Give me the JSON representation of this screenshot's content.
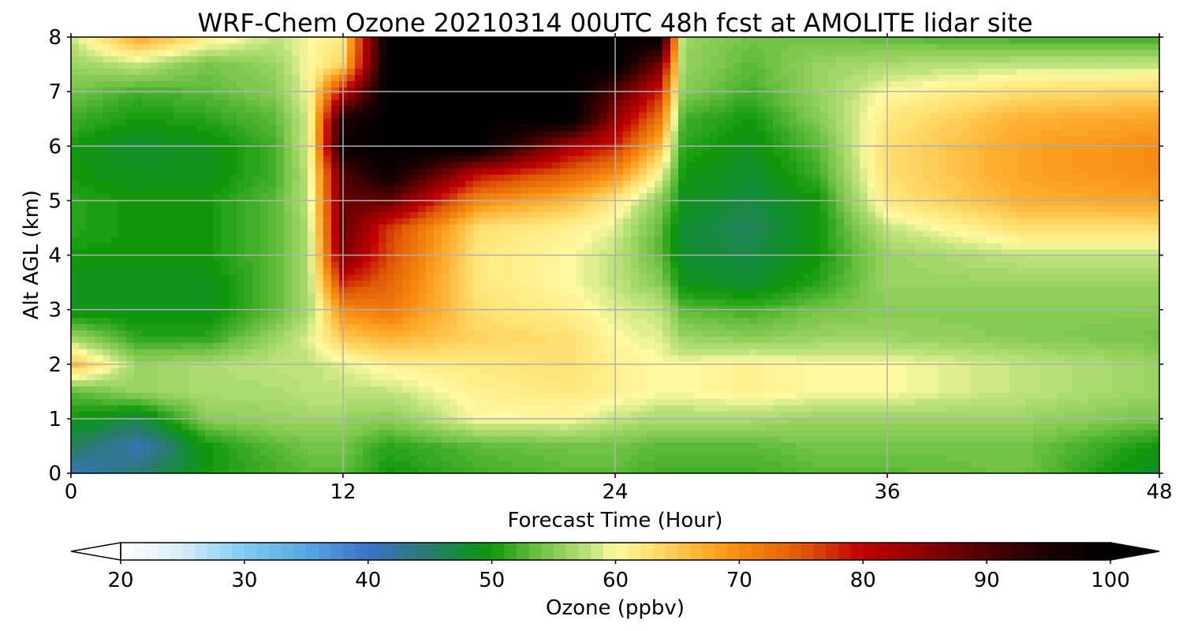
{
  "chart_data": {
    "type": "heatmap",
    "title": "WRF-Chem Ozone  20210314 00UTC 48h fcst at AMOLITE lidar site",
    "xlabel": "Forecast Time (Hour)",
    "ylabel": "Alt AGL (km)",
    "xlim": [
      0,
      48
    ],
    "ylim": [
      0,
      8
    ],
    "x_ticks": [
      "0",
      "12",
      "24",
      "36",
      "48"
    ],
    "y_ticks": [
      "0",
      "1",
      "2",
      "3",
      "4",
      "5",
      "6",
      "7",
      "8"
    ],
    "grid": true,
    "colorbar": {
      "label": "Ozone  (ppbv)",
      "range": [
        20,
        100
      ],
      "ticks": [
        "20",
        "30",
        "40",
        "50",
        "60",
        "70",
        "80",
        "90",
        "100"
      ],
      "extend": "both",
      "orientation": "horizontal",
      "stops": [
        [
          20,
          "#ffffff"
        ],
        [
          25,
          "#d6eefa"
        ],
        [
          30,
          "#7fcaf2"
        ],
        [
          35,
          "#56a8e4"
        ],
        [
          40,
          "#3a73c6"
        ],
        [
          45,
          "#2a7a6e"
        ],
        [
          48,
          "#109030"
        ],
        [
          50,
          "#10980a"
        ],
        [
          54,
          "#73c446"
        ],
        [
          58,
          "#bfe37c"
        ],
        [
          60,
          "#fff9a0"
        ],
        [
          63,
          "#ffe070"
        ],
        [
          67,
          "#ffb030"
        ],
        [
          70,
          "#f78c10"
        ],
        [
          75,
          "#e05a08"
        ],
        [
          80,
          "#c00000"
        ],
        [
          85,
          "#8a0000"
        ],
        [
          90,
          "#4e0000"
        ],
        [
          95,
          "#1c0000"
        ],
        [
          100,
          "#000000"
        ]
      ]
    },
    "x_hours": [
      0,
      3,
      6,
      9,
      10.5,
      12,
      14,
      18,
      22,
      24,
      26,
      27,
      30,
      33,
      36,
      42,
      48
    ],
    "z_km": [
      0,
      0.5,
      1,
      1.5,
      2,
      2.5,
      3,
      3.5,
      4,
      4.5,
      5,
      5.5,
      6,
      6.5,
      7,
      7.5,
      8
    ],
    "ozone_ppbv": [
      [
        40,
        45,
        50,
        52,
        53,
        53,
        50,
        52,
        53,
        53,
        52,
        52,
        52,
        53,
        53,
        54,
        48
      ],
      [
        46,
        41,
        50,
        53,
        54,
        54,
        51,
        53,
        54,
        54,
        53,
        53,
        53,
        54,
        54,
        54,
        50
      ],
      [
        50,
        47,
        55,
        56,
        56,
        56,
        55,
        60,
        60,
        58,
        57,
        57,
        57,
        56,
        56,
        56,
        54
      ],
      [
        53,
        56,
        57,
        57,
        58,
        58,
        58,
        61,
        62,
        61,
        60,
        60,
        61,
        60,
        60,
        58,
        56
      ],
      [
        66,
        56,
        57,
        58,
        58,
        59,
        61,
        62,
        63,
        61,
        60,
        60,
        61,
        60,
        60,
        58,
        56
      ],
      [
        56,
        51,
        51,
        56,
        59,
        65,
        67,
        64,
        63,
        60,
        59,
        56,
        55,
        56,
        56,
        55,
        54
      ],
      [
        49,
        49,
        49,
        53,
        57,
        70,
        72,
        63,
        61,
        59,
        58,
        53,
        52,
        54,
        55,
        55,
        55
      ],
      [
        49,
        49,
        49,
        53,
        57,
        78,
        74,
        62,
        60,
        58,
        55,
        49,
        48,
        51,
        56,
        56,
        56
      ],
      [
        50,
        50,
        50,
        53,
        57,
        86,
        76,
        62,
        60,
        58,
        53,
        48,
        47,
        50,
        56,
        58,
        58
      ],
      [
        51,
        50,
        50,
        53,
        57,
        88,
        77,
        63,
        61,
        59,
        53,
        48,
        46,
        50,
        58,
        63,
        63
      ],
      [
        51,
        50,
        50,
        53,
        58,
        88,
        88,
        70,
        66,
        62,
        55,
        49,
        47,
        50,
        62,
        67,
        68
      ],
      [
        50,
        49,
        49,
        52,
        58,
        90,
        98,
        80,
        74,
        70,
        60,
        50,
        48,
        52,
        63,
        68,
        70
      ],
      [
        50,
        48,
        49,
        52,
        59,
        98,
        100,
        100,
        82,
        78,
        66,
        51,
        49,
        53,
        63,
        68,
        70
      ],
      [
        52,
        50,
        51,
        53,
        59,
        95,
        100,
        100,
        100,
        84,
        72,
        52,
        50,
        55,
        62,
        67,
        68
      ],
      [
        54,
        52,
        53,
        55,
        60,
        80,
        100,
        100,
        100,
        90,
        78,
        55,
        52,
        56,
        60,
        63,
        64
      ],
      [
        56,
        58,
        54,
        56,
        60,
        64,
        100,
        100,
        100,
        100,
        86,
        56,
        53,
        56,
        57,
        58,
        58
      ],
      [
        58,
        68,
        62,
        58,
        60,
        62,
        100,
        100,
        100,
        100,
        100,
        56,
        54,
        54,
        53,
        52,
        52
      ]
    ]
  }
}
